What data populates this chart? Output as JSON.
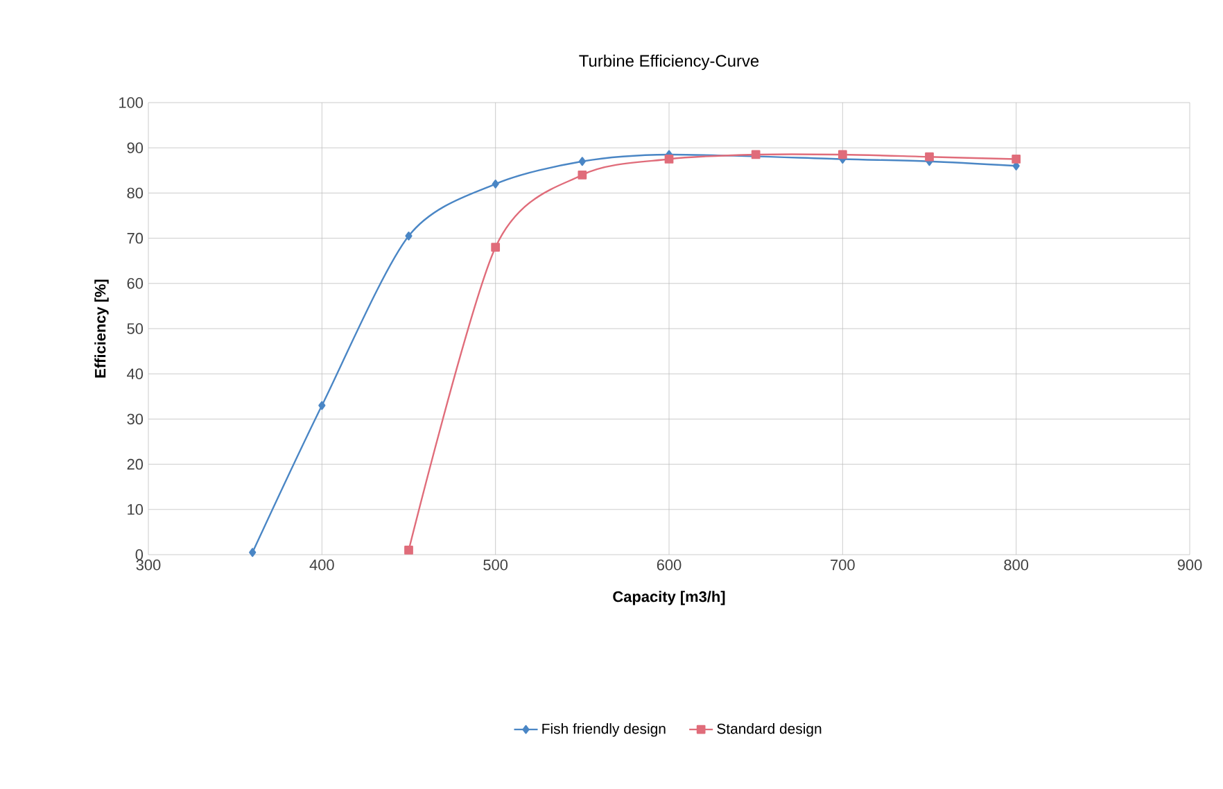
{
  "chart_data": {
    "type": "line",
    "title": "Turbine Efficiency-Curve",
    "xlabel": "Capacity [m3/h]",
    "ylabel": "Efficiency [%]",
    "xlim": [
      300,
      900
    ],
    "xticks": [
      300,
      400,
      500,
      600,
      700,
      800,
      900
    ],
    "ylim": [
      0,
      100
    ],
    "yticks": [
      0,
      10,
      20,
      30,
      40,
      50,
      60,
      70,
      80,
      90,
      100
    ],
    "grid": true,
    "legend": "bottom",
    "line_style": "solid",
    "series": [
      {
        "name": "Fish friendly design",
        "color": "#4a86c5",
        "marker": "diamond",
        "x": [
          360,
          400,
          450,
          500,
          550,
          600,
          650,
          700,
          750,
          800
        ],
        "values": [
          0.5,
          33,
          70.5,
          82,
          87,
          88.5,
          null,
          87.5,
          87,
          86
        ]
      },
      {
        "name": "Standard design",
        "color": "#e06c7a",
        "marker": "square",
        "x": [
          450,
          500,
          550,
          600,
          650,
          700,
          750,
          800
        ],
        "values": [
          1,
          68,
          84,
          87.5,
          88.5,
          88.5,
          88,
          87.5
        ]
      }
    ]
  }
}
